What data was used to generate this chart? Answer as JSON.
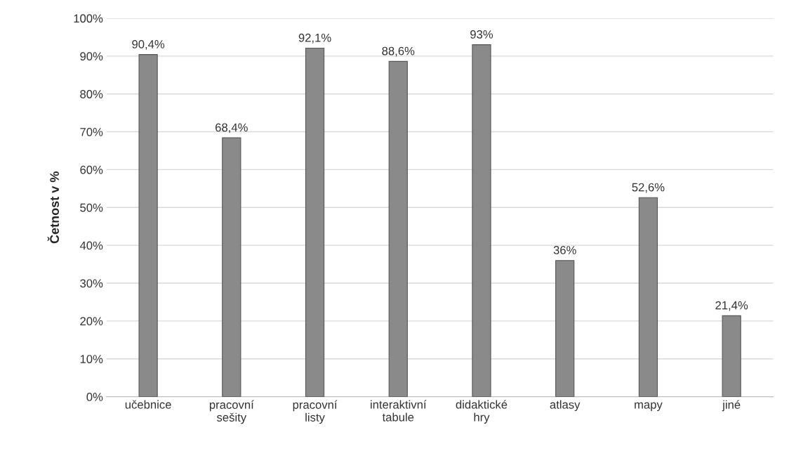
{
  "chart_data": {
    "type": "bar",
    "ylabel": "Četnost v %",
    "categories": [
      "učebnice",
      "pracovní\nsešity",
      "pracovní\nlisty",
      "interaktivní\ntabule",
      "didaktické\nhry",
      "atlasy",
      "mapy",
      "jiné"
    ],
    "values": [
      90.4,
      68.4,
      92.1,
      88.6,
      93,
      36,
      52.6,
      21.4
    ],
    "value_labels": [
      "90,4%",
      "68,4%",
      "92,1%",
      "88,6%",
      "93%",
      "36%",
      "52,6%",
      "21,4%"
    ],
    "color": "#8a8a8a",
    "ylim": [
      0,
      100
    ],
    "yticks": [
      {
        "value": 0,
        "label": "0%"
      },
      {
        "value": 10,
        "label": "10%"
      },
      {
        "value": 20,
        "label": "20%"
      },
      {
        "value": 30,
        "label": "30%"
      },
      {
        "value": 40,
        "label": "40%"
      },
      {
        "value": 50,
        "label": "50%"
      },
      {
        "value": 60,
        "label": "60%"
      },
      {
        "value": 70,
        "label": "70%"
      },
      {
        "value": 80,
        "label": "80%"
      },
      {
        "value": 90,
        "label": "90%"
      },
      {
        "value": 100,
        "label": "100%"
      }
    ],
    "grid": "y"
  }
}
